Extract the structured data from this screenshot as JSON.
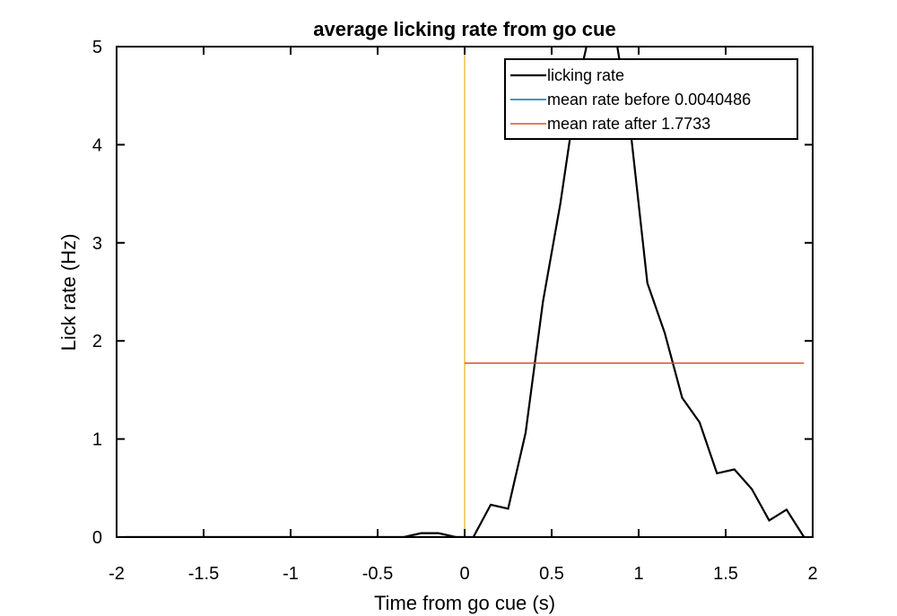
{
  "chart_data": {
    "type": "line",
    "title": "average licking rate from go cue",
    "xlabel": "Time from go cue (s)",
    "ylabel": "Lick rate (Hz)",
    "xlim": [
      -2,
      2
    ],
    "ylim": [
      0,
      5
    ],
    "xticks": [
      -2,
      -1.5,
      -1,
      -0.5,
      0,
      0.5,
      1,
      1.5,
      2
    ],
    "xtick_labels": [
      "-2",
      "-1.5",
      "-1",
      "-0.5",
      "0",
      "0.5",
      "1",
      "1.5",
      "2"
    ],
    "yticks": [
      0,
      1,
      2,
      3,
      4,
      5
    ],
    "ytick_labels": [
      "0",
      "1",
      "2",
      "3",
      "4",
      "5"
    ],
    "grid": false,
    "legend_position": "top-right",
    "series": [
      {
        "name": "licking rate",
        "color": "#000000",
        "x": [
          -1.95,
          -1.85,
          -1.75,
          -1.65,
          -1.55,
          -1.45,
          -1.35,
          -1.25,
          -1.15,
          -1.05,
          -0.95,
          -0.85,
          -0.75,
          -0.65,
          -0.55,
          -0.45,
          -0.35,
          -0.25,
          -0.15,
          -0.05,
          0.05,
          0.15,
          0.25,
          0.35,
          0.45,
          0.55,
          0.65,
          0.75,
          0.85,
          0.95,
          1.05,
          1.15,
          1.25,
          1.35,
          1.45,
          1.55,
          1.65,
          1.75,
          1.85,
          1.95
        ],
        "values": [
          0,
          0,
          0,
          0,
          0,
          0,
          0,
          0,
          0,
          0,
          0,
          0,
          0,
          0,
          0,
          0,
          0,
          0.04,
          0.04,
          0,
          0,
          0.33,
          0.29,
          1.06,
          2.4,
          3.4,
          4.6,
          5.4,
          5.3,
          4.2,
          2.59,
          2.08,
          1.42,
          1.17,
          0.65,
          0.69,
          0.49,
          0.17,
          0.28,
          0
        ],
        "clipped_at_ylim": true
      },
      {
        "name": "mean rate before 0.0040486",
        "color": "#0072BD",
        "x": [
          -2,
          0
        ],
        "values": [
          0.0040486,
          0.0040486
        ]
      },
      {
        "name": "mean rate after 1.7733",
        "color": "#D95319",
        "x": [
          0,
          1.95
        ],
        "values": [
          1.7733,
          1.7733
        ]
      }
    ],
    "vertical_lines": [
      {
        "x": 0,
        "color": "#EDB120"
      }
    ]
  }
}
